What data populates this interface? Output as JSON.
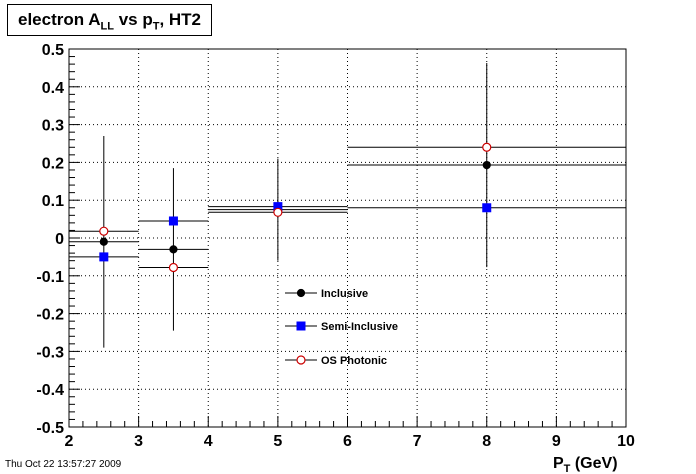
{
  "title": {
    "main": "electron A",
    "sub1": "LL",
    "mid": " vs p",
    "sub2": "T",
    "tail": ", HT2"
  },
  "footer": {
    "date": "Thu Oct 22 13:57:27 2009"
  },
  "chart_data": {
    "type": "scatter",
    "title": "electron A_LL vs p_T, HT2",
    "xlabel_main": "P",
    "xlabel_sub": "T",
    "xlabel_tail": " (GeV)",
    "ylabel": "",
    "xlim": [
      2,
      10
    ],
    "ylim": [
      -0.5,
      0.5
    ],
    "grid": true,
    "x_ticks": [
      "2",
      "3",
      "4",
      "5",
      "6",
      "7",
      "8",
      "9",
      "10"
    ],
    "y_ticks": [
      "-0.5",
      "-0.4",
      "-0.3",
      "-0.2",
      "-0.1",
      "0",
      "0.1",
      "0.2",
      "0.3",
      "0.4",
      "0.5"
    ],
    "x_bins": [
      [
        2,
        3
      ],
      [
        3,
        4
      ],
      [
        4,
        6
      ],
      [
        6,
        10
      ]
    ],
    "series": [
      {
        "name": "Inclusive",
        "marker": "filled-circle",
        "color": "#000000",
        "x": [
          2.5,
          3.5,
          5,
          8
        ],
        "y": [
          -0.01,
          -0.03,
          0.075,
          0.193
        ],
        "yerr": [
          0.28,
          0.215,
          0.135,
          0.27
        ]
      },
      {
        "name": "Semi-Inclusive",
        "marker": "filled-square",
        "color": "#0000ff",
        "x": [
          2.5,
          3.5,
          5,
          8
        ],
        "y": [
          -0.05,
          0.045,
          0.083,
          0.08
        ],
        "yerr": [
          0,
          0,
          0,
          0
        ]
      },
      {
        "name": "OS Photonic",
        "marker": "open-circle",
        "color": "#cc0000",
        "x": [
          2.5,
          3.5,
          5,
          8
        ],
        "y": [
          0.018,
          -0.078,
          0.068,
          0.24
        ],
        "yerr": [
          0,
          0,
          0,
          0
        ]
      }
    ],
    "legend_position": "center"
  }
}
